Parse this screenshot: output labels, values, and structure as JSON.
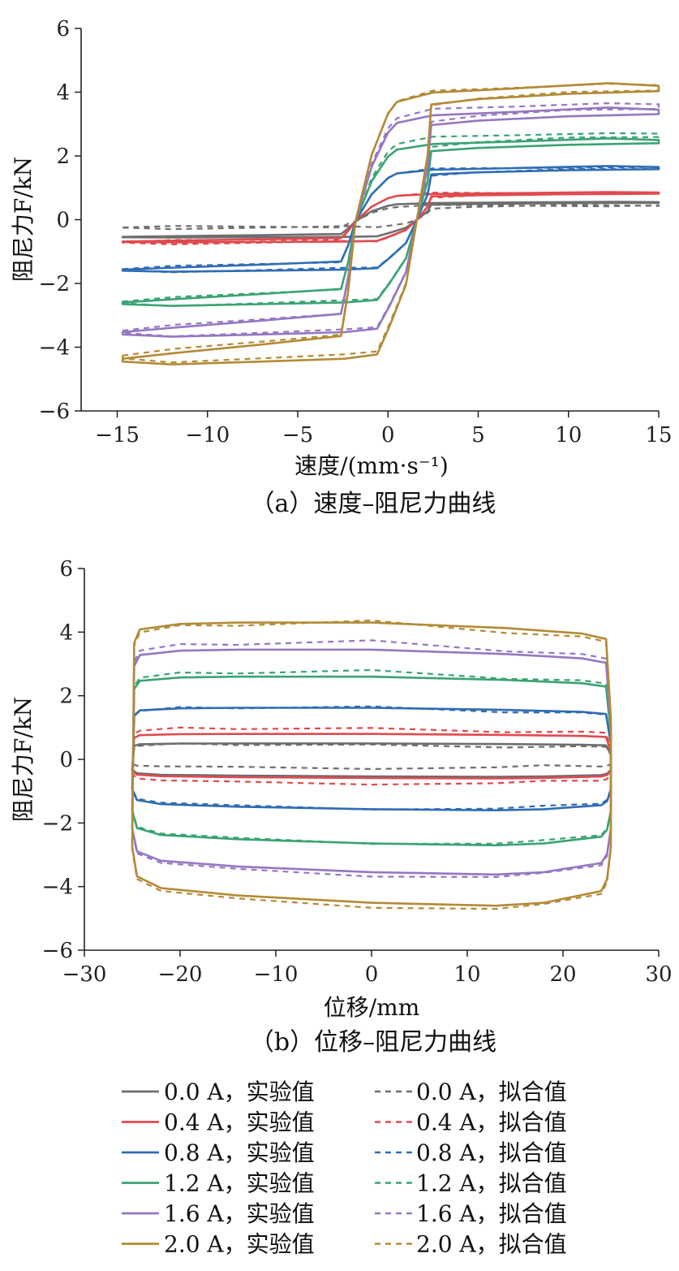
{
  "colors": {
    "0.0 A": "#6e6e6e",
    "0.4 A": "#e04a4e",
    "0.8 A": "#2f6cb5",
    "1.2 A": "#3aa374",
    "1.6 A": "#9577c2",
    "2.0 A": "#b38a36"
  },
  "legend": {
    "exp_suffix": "，实验值",
    "fit_suffix": "，拟合值",
    "currents": [
      "0.0 A",
      "0.4 A",
      "0.8 A",
      "1.2 A",
      "1.6 A",
      "2.0 A"
    ]
  },
  "chart_data": [
    {
      "type": "line",
      "caption": "（a）速度–阻尼力曲线",
      "xlabel": "速度/(mm·s⁻¹)",
      "ylabel": "阻尼力F/kN",
      "xlim": [
        -17,
        15
      ],
      "ylim": [
        -6,
        6
      ],
      "xticks": [
        -15,
        -10,
        -5,
        0,
        5,
        10,
        15
      ],
      "yticks": [
        -6,
        -4,
        -2,
        0,
        2,
        4,
        6
      ],
      "xtick_labels": [
        "−15",
        "−10",
        "−5",
        "0",
        "5",
        "10",
        "15"
      ],
      "ytick_labels": [
        "−6",
        "−4",
        "−2",
        "0",
        "2",
        "4",
        "6"
      ],
      "grid": false,
      "series": [
        {
          "current": "0.0 A",
          "kind": "实验值",
          "Fmax": 0.55,
          "Fmin": -0.55
        },
        {
          "current": "0.0 A",
          "kind": "拟合值",
          "Fmax": 0.45,
          "Fmin": -0.25
        },
        {
          "current": "0.4 A",
          "kind": "实验值",
          "Fmax": 0.85,
          "Fmin": -0.7
        },
        {
          "current": "0.4 A",
          "kind": "拟合值",
          "Fmax": 0.85,
          "Fmin": -0.72
        },
        {
          "current": "0.8 A",
          "kind": "实验值",
          "Fmax": 1.65,
          "Fmin": -1.6
        },
        {
          "current": "0.8 A",
          "kind": "拟合值",
          "Fmax": 1.65,
          "Fmin": -1.58
        },
        {
          "current": "1.2 A",
          "kind": "实验值",
          "Fmax": 2.5,
          "Fmin": -2.65
        },
        {
          "current": "1.2 A",
          "kind": "拟合值",
          "Fmax": 2.7,
          "Fmin": -2.62
        },
        {
          "current": "1.6 A",
          "kind": "实验值",
          "Fmax": 3.45,
          "Fmin": -3.6
        },
        {
          "current": "1.6 A",
          "kind": "拟合值",
          "Fmax": 3.62,
          "Fmin": -3.55
        },
        {
          "current": "2.0 A",
          "kind": "实验值",
          "Fmax": 4.2,
          "Fmin": -4.45
        },
        {
          "current": "2.0 A",
          "kind": "拟合值",
          "Fmax": 4.22,
          "Fmin": -4.35
        }
      ]
    },
    {
      "type": "line",
      "caption": "（b）位移–阻尼力曲线",
      "xlabel": "位移/mm",
      "ylabel": "阻尼力F/kN",
      "xlim": [
        -30,
        30
      ],
      "ylim": [
        -6,
        6
      ],
      "xticks": [
        -30,
        -20,
        -10,
        0,
        10,
        20,
        30
      ],
      "yticks": [
        -6,
        -4,
        -2,
        0,
        2,
        4,
        6
      ],
      "xtick_labels": [
        "−30",
        "−20",
        "−10",
        "0",
        "10",
        "20",
        "30"
      ],
      "ytick_labels": [
        "−6",
        "−4",
        "−2",
        "0",
        "2",
        "4",
        "6"
      ],
      "grid": false,
      "series": [
        {
          "current": "0.0 A",
          "kind": "实验值",
          "Fmax": 0.5,
          "Fmin": -0.55
        },
        {
          "current": "0.0 A",
          "kind": "拟合值",
          "Fmax": 0.45,
          "Fmin": -0.25
        },
        {
          "current": "0.4 A",
          "kind": "实验值",
          "Fmax": 0.8,
          "Fmin": -0.6
        },
        {
          "current": "0.4 A",
          "kind": "拟合值",
          "Fmax": 0.95,
          "Fmin": -0.75
        },
        {
          "current": "0.8 A",
          "kind": "实验值",
          "Fmax": 1.62,
          "Fmin": -1.6
        },
        {
          "current": "0.8 A",
          "kind": "拟合值",
          "Fmax": 1.6,
          "Fmin": -1.55
        },
        {
          "current": "1.2 A",
          "kind": "实验值",
          "Fmax": 2.6,
          "Fmin": -2.7
        },
        {
          "current": "1.2 A",
          "kind": "拟合值",
          "Fmax": 2.7,
          "Fmin": -2.65
        },
        {
          "current": "1.6 A",
          "kind": "实验值",
          "Fmax": 3.45,
          "Fmin": -3.62
        },
        {
          "current": "1.6 A",
          "kind": "拟合值",
          "Fmax": 3.6,
          "Fmin": -3.7
        },
        {
          "current": "2.0 A",
          "kind": "实验值",
          "Fmax": 4.3,
          "Fmin": -4.6
        },
        {
          "current": "2.0 A",
          "kind": "拟合值",
          "Fmax": 4.2,
          "Fmin": -4.7
        }
      ]
    }
  ]
}
